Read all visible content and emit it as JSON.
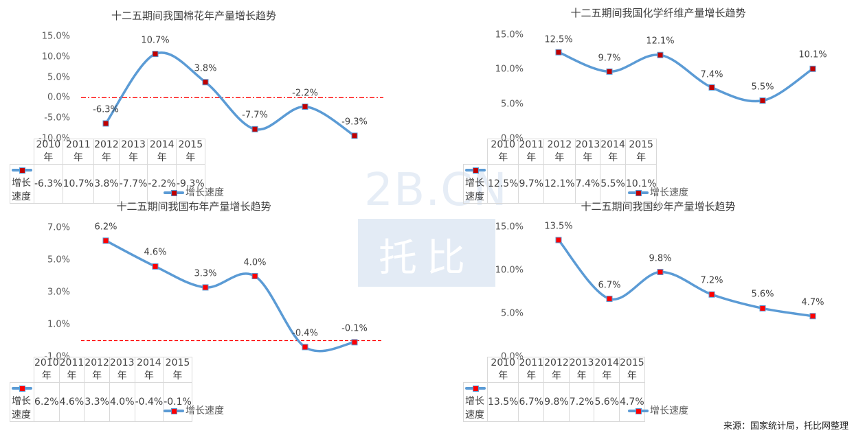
{
  "watermark": {
    "top_text": "2B.CN",
    "box_text": "托比网"
  },
  "source_note": "来源：国家统计局，托比网整理",
  "chart_data": [
    {
      "type": "line",
      "title": "十二五期间我国棉花年产量增长趋势",
      "categories": [
        "2010年",
        "2011年",
        "2012年",
        "2013年",
        "2014年",
        "2015年"
      ],
      "series": [
        {
          "name": "增长速度",
          "values": [
            -6.3,
            10.7,
            3.8,
            -7.7,
            -2.2,
            -9.3
          ]
        }
      ],
      "value_labels": [
        "-6.3%",
        "10.7%",
        "3.8%",
        "-7.7%",
        "-2.2%",
        "-9.3%"
      ],
      "yticks": [
        "15.0%",
        "10.0%",
        "5.0%",
        "0.0%",
        "-5.0%",
        "-10.0%"
      ],
      "ylim": [
        -10,
        15
      ],
      "reference_line": {
        "value": 0,
        "style": "dash-dot",
        "color": "#ff0000"
      },
      "xlabel": "",
      "ylabel": "",
      "legend": "增长速度",
      "legend_position": "bottom",
      "data_table": true,
      "line_color": "#5b9bd5",
      "marker_color": "#c00000"
    },
    {
      "type": "line",
      "title": "十二五期间我国化学纤维产量增长趋势",
      "categories": [
        "2010年",
        "2011年",
        "2012年",
        "2013年",
        "2014年",
        "2015年"
      ],
      "series": [
        {
          "name": "增长速度",
          "values": [
            12.5,
            9.7,
            12.1,
            7.4,
            5.5,
            10.1
          ]
        }
      ],
      "value_labels": [
        "12.5%",
        "9.7%",
        "12.1%",
        "7.4%",
        "5.5%",
        "10.1%"
      ],
      "yticks": [
        "15.0%",
        "10.0%",
        "5.0%",
        "0.0%"
      ],
      "ylim": [
        0,
        15
      ],
      "xlabel": "",
      "ylabel": "",
      "legend": "增长速度",
      "legend_position": "bottom",
      "data_table": true,
      "line_color": "#5b9bd5",
      "marker_color": "#c00000"
    },
    {
      "type": "line",
      "title": "十二五期间我国布年产量增长趋势",
      "categories": [
        "2010年",
        "2011年",
        "2012年",
        "2013年",
        "2014年",
        "2015年"
      ],
      "series": [
        {
          "name": "增长速度",
          "values": [
            6.2,
            4.6,
            3.3,
            4.0,
            -0.4,
            -0.1
          ]
        }
      ],
      "value_labels": [
        "6.2%",
        "4.6%",
        "3.3%",
        "4.0%",
        "-0.4%",
        "-0.1%"
      ],
      "yticks": [
        "7.0%",
        "5.0%",
        "3.0%",
        "1.0%",
        "-1.0%"
      ],
      "ylim": [
        -1,
        7
      ],
      "reference_line": {
        "value": 0,
        "style": "dashed",
        "color": "#ff0000"
      },
      "xlabel": "",
      "ylabel": "",
      "legend": "增长速度",
      "legend_position": "bottom",
      "data_table": true,
      "line_color": "#5b9bd5",
      "marker_color": "#ff0000"
    },
    {
      "type": "line",
      "title": "十二五期间我国纱年产量增长趋势",
      "categories": [
        "2010年",
        "2011年",
        "2012年",
        "2013年",
        "2014年",
        "2015年"
      ],
      "series": [
        {
          "name": "增长速度",
          "values": [
            13.5,
            6.7,
            9.8,
            7.2,
            5.6,
            4.7
          ]
        }
      ],
      "value_labels": [
        "13.5%",
        "6.7%",
        "9.8%",
        "7.2%",
        "5.6%",
        "4.7%"
      ],
      "yticks": [
        "15.0%",
        "10.0%",
        "5.0%",
        "0.0%"
      ],
      "ylim": [
        0,
        15
      ],
      "xlabel": "",
      "ylabel": "",
      "legend": "增长速度",
      "legend_position": "bottom",
      "data_table": true,
      "line_color": "#5b9bd5",
      "marker_color": "#ff0000"
    }
  ]
}
